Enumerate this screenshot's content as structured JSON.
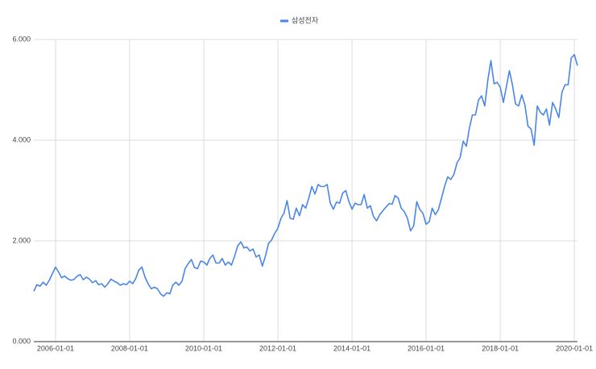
{
  "chart_data": {
    "type": "line",
    "x": [
      "2005-06-01",
      "2005-07-01",
      "2005-08-01",
      "2005-09-01",
      "2005-10-01",
      "2005-11-01",
      "2005-12-01",
      "2006-01-01",
      "2006-02-01",
      "2006-03-01",
      "2006-04-01",
      "2006-05-01",
      "2006-06-01",
      "2006-07-01",
      "2006-08-01",
      "2006-09-01",
      "2006-10-01",
      "2006-11-01",
      "2006-12-01",
      "2007-01-01",
      "2007-02-01",
      "2007-03-01",
      "2007-04-01",
      "2007-05-01",
      "2007-06-01",
      "2007-07-01",
      "2007-08-01",
      "2007-09-01",
      "2007-10-01",
      "2007-11-01",
      "2007-12-01",
      "2008-01-01",
      "2008-02-01",
      "2008-03-01",
      "2008-04-01",
      "2008-05-01",
      "2008-06-01",
      "2008-07-01",
      "2008-08-01",
      "2008-09-01",
      "2008-10-01",
      "2008-11-01",
      "2008-12-01",
      "2009-01-01",
      "2009-02-01",
      "2009-03-01",
      "2009-04-01",
      "2009-05-01",
      "2009-06-01",
      "2009-07-01",
      "2009-08-01",
      "2009-09-01",
      "2009-10-01",
      "2009-11-01",
      "2009-12-01",
      "2010-01-01",
      "2010-02-01",
      "2010-03-01",
      "2010-04-01",
      "2010-05-01",
      "2010-06-01",
      "2010-07-01",
      "2010-08-01",
      "2010-09-01",
      "2010-10-01",
      "2010-11-01",
      "2010-12-01",
      "2011-01-01",
      "2011-02-01",
      "2011-03-01",
      "2011-04-01",
      "2011-05-01",
      "2011-06-01",
      "2011-07-01",
      "2011-08-01",
      "2011-09-01",
      "2011-10-01",
      "2011-11-01",
      "2011-12-01",
      "2012-01-01",
      "2012-02-01",
      "2012-03-01",
      "2012-04-01",
      "2012-05-01",
      "2012-06-01",
      "2012-07-01",
      "2012-08-01",
      "2012-09-01",
      "2012-10-01",
      "2012-11-01",
      "2012-12-01",
      "2013-01-01",
      "2013-02-01",
      "2013-03-01",
      "2013-04-01",
      "2013-05-01",
      "2013-06-01",
      "2013-07-01",
      "2013-08-01",
      "2013-09-01",
      "2013-10-01",
      "2013-11-01",
      "2013-12-01",
      "2014-01-01",
      "2014-02-01",
      "2014-03-01",
      "2014-04-01",
      "2014-05-01",
      "2014-06-01",
      "2014-07-01",
      "2014-08-01",
      "2014-09-01",
      "2014-10-01",
      "2014-11-01",
      "2014-12-01",
      "2015-01-01",
      "2015-02-01",
      "2015-03-01",
      "2015-04-01",
      "2015-05-01",
      "2015-06-01",
      "2015-07-01",
      "2015-08-01",
      "2015-09-01",
      "2015-10-01",
      "2015-11-01",
      "2015-12-01",
      "2016-01-01",
      "2016-02-01",
      "2016-03-01",
      "2016-04-01",
      "2016-05-01",
      "2016-06-01",
      "2016-07-01",
      "2016-08-01",
      "2016-09-01",
      "2016-10-01",
      "2016-11-01",
      "2016-12-01",
      "2017-01-01",
      "2017-02-01",
      "2017-03-01",
      "2017-04-01",
      "2017-05-01",
      "2017-06-01",
      "2017-07-01",
      "2017-08-01",
      "2017-09-01",
      "2017-10-01",
      "2017-11-01",
      "2017-12-01",
      "2018-01-01",
      "2018-02-01",
      "2018-03-01",
      "2018-04-01",
      "2018-05-01",
      "2018-06-01",
      "2018-07-01",
      "2018-08-01",
      "2018-09-01",
      "2018-10-01",
      "2018-11-01",
      "2018-12-01",
      "2019-01-01",
      "2019-02-01",
      "2019-03-01",
      "2019-04-01",
      "2019-05-01",
      "2019-06-01",
      "2019-07-01",
      "2019-08-01",
      "2019-09-01",
      "2019-10-01",
      "2019-11-01",
      "2019-12-01",
      "2020-01-01",
      "2020-02-01"
    ],
    "series": [
      {
        "name": "삼성전자",
        "color": "#4a86e8",
        "values": [
          1.0,
          1.13,
          1.1,
          1.18,
          1.12,
          1.22,
          1.35,
          1.48,
          1.38,
          1.27,
          1.3,
          1.25,
          1.22,
          1.23,
          1.3,
          1.33,
          1.23,
          1.28,
          1.24,
          1.17,
          1.21,
          1.13,
          1.15,
          1.08,
          1.15,
          1.24,
          1.2,
          1.17,
          1.12,
          1.15,
          1.13,
          1.2,
          1.15,
          1.25,
          1.42,
          1.48,
          1.28,
          1.15,
          1.05,
          1.08,
          1.05,
          0.95,
          0.9,
          0.97,
          0.95,
          1.12,
          1.18,
          1.12,
          1.2,
          1.45,
          1.55,
          1.63,
          1.47,
          1.45,
          1.6,
          1.58,
          1.52,
          1.65,
          1.72,
          1.56,
          1.56,
          1.65,
          1.52,
          1.58,
          1.52,
          1.7,
          1.9,
          1.98,
          1.86,
          1.88,
          1.8,
          1.84,
          1.68,
          1.72,
          1.5,
          1.7,
          1.95,
          2.02,
          2.15,
          2.25,
          2.45,
          2.55,
          2.8,
          2.45,
          2.43,
          2.65,
          2.5,
          2.72,
          2.65,
          2.85,
          3.08,
          2.93,
          3.12,
          3.08,
          3.08,
          3.12,
          2.75,
          2.63,
          2.77,
          2.75,
          2.95,
          3.0,
          2.78,
          2.63,
          2.75,
          2.72,
          2.72,
          2.92,
          2.65,
          2.7,
          2.48,
          2.4,
          2.52,
          2.6,
          2.67,
          2.74,
          2.73,
          2.9,
          2.85,
          2.65,
          2.58,
          2.45,
          2.2,
          2.3,
          2.78,
          2.62,
          2.55,
          2.33,
          2.38,
          2.65,
          2.52,
          2.62,
          2.85,
          3.08,
          3.27,
          3.22,
          3.32,
          3.55,
          3.65,
          3.98,
          3.88,
          4.22,
          4.5,
          4.5,
          4.8,
          4.88,
          4.68,
          5.2,
          5.58,
          5.12,
          5.15,
          5.05,
          4.75,
          5.05,
          5.38,
          5.1,
          4.72,
          4.68,
          4.9,
          4.7,
          4.28,
          4.22,
          3.9,
          4.68,
          4.55,
          4.5,
          4.62,
          4.3,
          4.75,
          4.62,
          4.45,
          4.95,
          5.1,
          5.1,
          5.63,
          5.7,
          5.48
        ]
      }
    ],
    "xlim": [
      "2005-06-01",
      "2020-02-01"
    ],
    "xticks": [
      "2006-01-01",
      "2008-01-01",
      "2010-01-01",
      "2012-01-01",
      "2014-01-01",
      "2016-01-01",
      "2018-01-01",
      "2020-01-01"
    ],
    "ylim": [
      0,
      6
    ],
    "yticks": [
      {
        "value": 0,
        "label": "0.000"
      },
      {
        "value": 2,
        "label": "2.000"
      },
      {
        "value": 4,
        "label": "4.000"
      },
      {
        "value": 6,
        "label": "6.000"
      }
    ],
    "grid": true,
    "legend": "top"
  }
}
